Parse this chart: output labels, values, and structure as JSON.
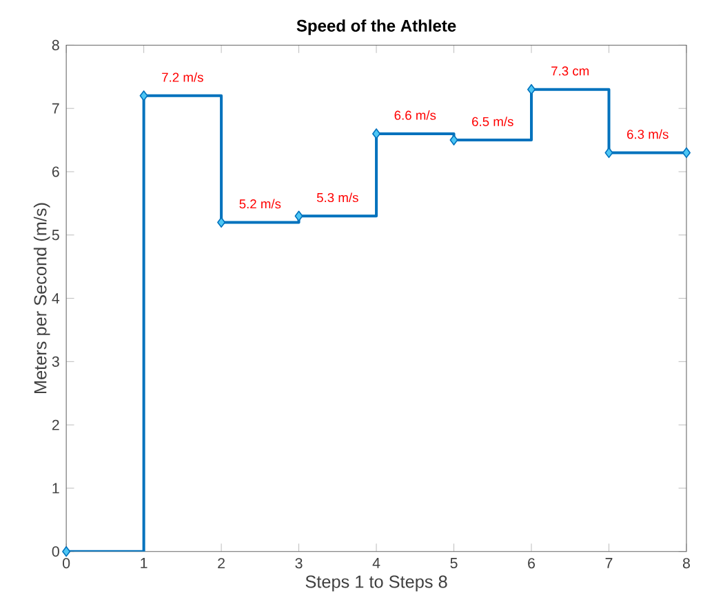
{
  "chart_data": {
    "type": "step",
    "title": "Speed of the Athlete",
    "xlabel": "Steps 1 to Steps 8",
    "ylabel": "Meters per Second (m/s)",
    "x": [
      0,
      1,
      2,
      3,
      4,
      5,
      6,
      7,
      8
    ],
    "series": [
      {
        "color": "#0072bd",
        "values": [
          0,
          7.2,
          5.2,
          5.3,
          6.6,
          6.5,
          7.3,
          6.3,
          6.3
        ]
      }
    ],
    "xlim": [
      0,
      8
    ],
    "ylim": [
      0,
      8
    ],
    "xticks": [
      0,
      1,
      2,
      3,
      4,
      5,
      6,
      7,
      8
    ],
    "yticks": [
      0,
      1,
      2,
      3,
      4,
      5,
      6,
      7,
      8
    ],
    "marker": "diamond",
    "line_style": "solid",
    "annotations": [
      {
        "text": "7.2 m/s",
        "x": 1.5,
        "y": 7.2
      },
      {
        "text": "5.2 m/s",
        "x": 2.5,
        "y": 5.2
      },
      {
        "text": "5.3 m/s",
        "x": 3.5,
        "y": 5.3
      },
      {
        "text": "6.6 m/s",
        "x": 4.5,
        "y": 6.6
      },
      {
        "text": "6.5 m/s",
        "x": 5.5,
        "y": 6.5
      },
      {
        "text": "7.3 cm",
        "x": 6.5,
        "y": 7.3
      },
      {
        "text": "6.3 m/s",
        "x": 7.5,
        "y": 6.3
      }
    ]
  }
}
